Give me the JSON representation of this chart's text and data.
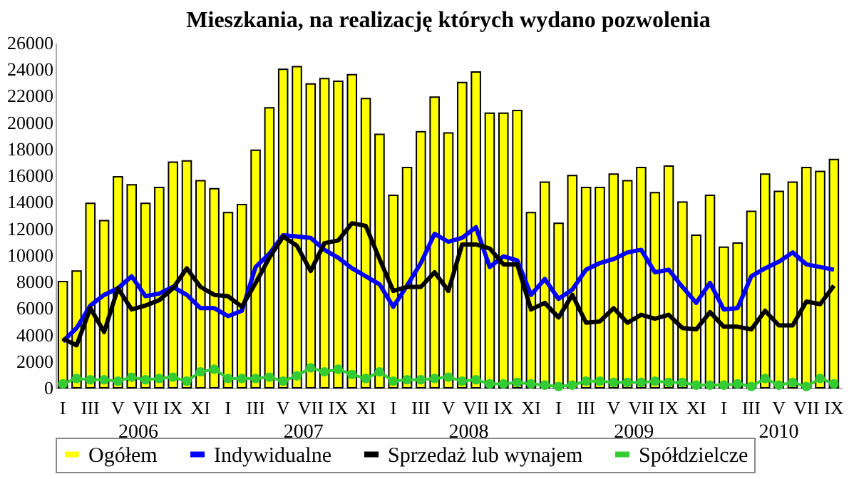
{
  "chart_data": {
    "type": "bar",
    "title": "Mieszkania, na realizację których wydano pozwolenia",
    "categories": [
      "I",
      null,
      "III",
      null,
      "V",
      null,
      "VII",
      null,
      "IX",
      null,
      "XI",
      null,
      "I",
      null,
      "III",
      null,
      "V",
      null,
      "VII",
      null,
      "IX",
      null,
      "XI",
      null,
      "I",
      null,
      "III",
      null,
      "V",
      null,
      "VII",
      null,
      "IX",
      null,
      "XI",
      null,
      "I",
      null,
      "III",
      null,
      "V",
      null,
      "VII",
      null,
      "IX",
      null,
      "XI",
      null,
      "I",
      null,
      "III",
      null,
      "V",
      null,
      "VII",
      null,
      "IX"
    ],
    "series": [
      {
        "name": "Ogółem",
        "color": "#ffff00",
        "values": [
          8000,
          8800,
          13900,
          12600,
          15900,
          15300,
          13900,
          15100,
          17000,
          17100,
          15600,
          15000,
          13200,
          13800,
          17900,
          21100,
          24000,
          24200,
          22900,
          23300,
          23100,
          23600,
          21800,
          19100,
          14500,
          16600,
          19300,
          21900,
          19200,
          23000,
          23800,
          20700,
          20700,
          20900,
          13200,
          15500,
          12400,
          16000,
          15100,
          15100,
          16100,
          15600,
          16600,
          14700,
          16700,
          14000,
          11500,
          14500,
          10600,
          10900,
          13300,
          16100,
          14800,
          15500,
          16600,
          16300,
          17200
        ]
      },
      {
        "name": "Indywidualne",
        "type": "line",
        "color": "#0000ff",
        "values": [
          3500,
          4500,
          6200,
          7000,
          7500,
          8400,
          6900,
          7100,
          7600,
          7000,
          6000,
          6000,
          5400,
          5800,
          9100,
          10100,
          11500,
          11400,
          11300,
          10400,
          9800,
          9000,
          8400,
          7800,
          6100,
          7700,
          9400,
          11600,
          11000,
          11300,
          12100,
          9100,
          9900,
          9600,
          7000,
          8200,
          6700,
          7400,
          8900,
          9400,
          9700,
          10200,
          10400,
          8700,
          8900,
          7600,
          6400,
          7900,
          5900,
          6000,
          8400,
          9000,
          9500,
          10200,
          9300,
          9100,
          8900
        ]
      },
      {
        "name": "Sprzedaż lub wynajem",
        "type": "line",
        "color": "#000000",
        "values": [
          3700,
          3200,
          6000,
          4200,
          7500,
          5900,
          6200,
          6600,
          7500,
          9000,
          7600,
          7000,
          6900,
          6100,
          7900,
          9800,
          11400,
          10700,
          8800,
          10900,
          11100,
          12400,
          12200,
          9700,
          7300,
          7600,
          7600,
          8700,
          7300,
          10800,
          10800,
          10500,
          9300,
          9300,
          5900,
          6400,
          5300,
          7000,
          4900,
          5000,
          6000,
          4900,
          5500,
          5200,
          5500,
          4500,
          4400,
          5700,
          4600,
          4600,
          4400,
          5800,
          4700,
          4700,
          6500,
          6300,
          7700
        ]
      },
      {
        "name": "Spółdzielcze",
        "type": "line",
        "marker": "circle",
        "color": "#33cc33",
        "values": [
          300,
          700,
          600,
          600,
          500,
          800,
          600,
          700,
          800,
          500,
          1200,
          1400,
          700,
          700,
          700,
          800,
          500,
          900,
          1500,
          1200,
          1400,
          1000,
          700,
          1200,
          500,
          600,
          600,
          700,
          800,
          500,
          600,
          300,
          300,
          400,
          300,
          200,
          100,
          200,
          500,
          500,
          400,
          400,
          400,
          500,
          400,
          400,
          200,
          200,
          200,
          300,
          100,
          700,
          200,
          400,
          100,
          700,
          300
        ]
      }
    ],
    "annotations": [
      "2006",
      "2007",
      "2008",
      "2009",
      "2010"
    ],
    "ylim": [
      0,
      26000
    ],
    "yticks": [
      0,
      2000,
      4000,
      6000,
      8000,
      10000,
      12000,
      14000,
      16000,
      18000,
      20000,
      22000,
      24000,
      26000
    ],
    "grid": false,
    "legend": "bottom"
  }
}
